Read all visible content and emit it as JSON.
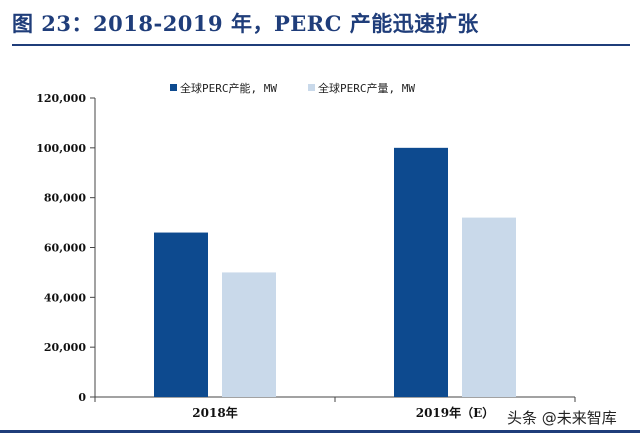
{
  "title": "图 23：2018-2019 年，PERC 产能迅速扩张",
  "watermark": "头条 @未来智库",
  "colors": {
    "title": "#1f3d7a",
    "capacity": "#0d4a8f",
    "output": "#c9d9ea",
    "axis": "#444444"
  },
  "chart_data": {
    "type": "bar",
    "categories": [
      "2018年",
      "2019年（E）"
    ],
    "series": [
      {
        "name": "全球PERC产能, MW",
        "values": [
          66000,
          100000
        ]
      },
      {
        "name": "全球PERC产量, MW",
        "values": [
          50000,
          72000
        ]
      }
    ],
    "ylim": [
      0,
      120000
    ],
    "yticks": [
      "0",
      "20,000",
      "40,000",
      "60,000",
      "80,000",
      "100,000",
      "120,000"
    ],
    "legend_position": "top",
    "grid": false
  }
}
